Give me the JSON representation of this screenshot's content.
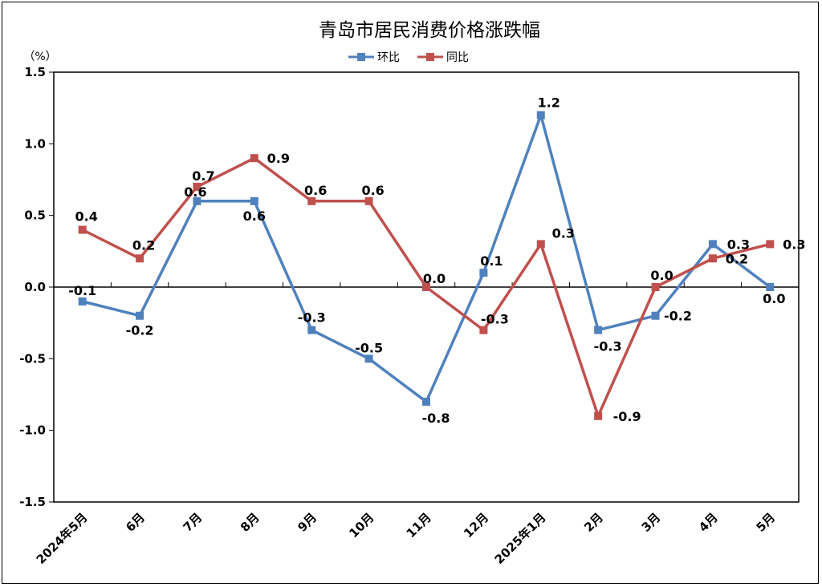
{
  "chart_data": {
    "type": "line",
    "title": "青岛市居民消费价格涨跌幅",
    "ylabel": "（%）",
    "xlabel": "",
    "categories": [
      "2024年5月",
      "6月",
      "7月",
      "8月",
      "9月",
      "10月",
      "11月",
      "12月",
      "2025年1月",
      "2月",
      "3月",
      "4月",
      "5月"
    ],
    "ylim": [
      -1.5,
      1.5
    ],
    "yticks": [
      "1.5",
      "1.0",
      "0.5",
      "0.0",
      "-0.5",
      "-1.0",
      "-1.5"
    ],
    "legend_position": "top-center",
    "grid": false,
    "series": [
      {
        "name": "环比",
        "color": "#4F81BD",
        "values": [
          -0.1,
          -0.2,
          0.6,
          0.6,
          -0.3,
          -0.5,
          -0.8,
          0.1,
          1.2,
          -0.3,
          -0.2,
          0.3,
          0.0
        ],
        "labels": [
          "-0.1",
          "-0.2",
          "0.6",
          "0.6",
          "-0.3",
          "-0.5",
          "-0.8",
          "0.1",
          "1.2",
          "-0.3",
          "-0.2",
          "0.3",
          "0.0"
        ]
      },
      {
        "name": "同比",
        "color": "#C0504D",
        "values": [
          0.4,
          0.2,
          0.7,
          0.9,
          0.6,
          0.6,
          0.0,
          -0.3,
          0.3,
          -0.9,
          0.0,
          0.2,
          0.3
        ],
        "labels": [
          "0.4",
          "0.2",
          "0.7",
          "0.9",
          "0.6",
          "0.6",
          "0.0",
          "-0.3",
          "0.3",
          "-0.9",
          "0.0",
          "0.2",
          "0.3"
        ]
      }
    ]
  }
}
